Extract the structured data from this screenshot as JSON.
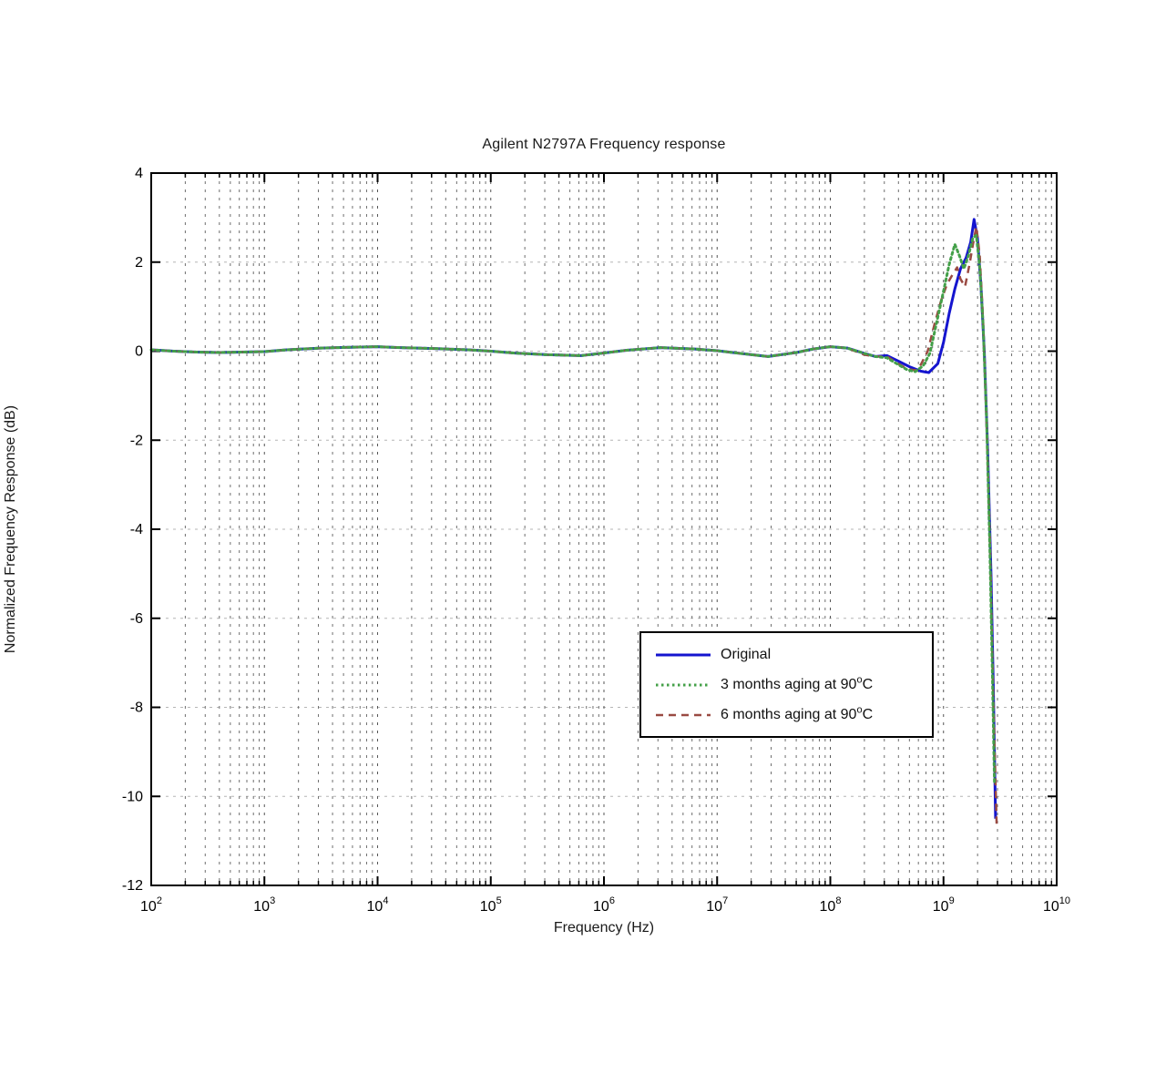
{
  "chart_data": {
    "type": "line",
    "title": "Agilent N2797A Frequency response",
    "xlabel": "Frequency (Hz)",
    "ylabel": "Normalized Frequency Response (dB)",
    "x_scale": "log10",
    "x_range_log10": [
      2,
      10
    ],
    "y_range": [
      -12,
      4
    ],
    "x_tick_exponents": [
      2,
      3,
      4,
      5,
      6,
      7,
      8,
      9,
      10
    ],
    "y_ticks": [
      4,
      2,
      0,
      -2,
      -4,
      -6,
      -8,
      -10,
      -12
    ],
    "grid": {
      "vertical_log_minor": true,
      "horizontal": true,
      "style": "dashed"
    },
    "legend_position": "inside-lower-right",
    "series": [
      {
        "name": "Original",
        "name_sup": "",
        "name_tail": "",
        "color": "#1515cf",
        "line_style": "solid",
        "line_width": 3,
        "points": [
          [
            2.0,
            0.03
          ],
          [
            2.2,
            0.0
          ],
          [
            2.4,
            -0.02
          ],
          [
            2.6,
            -0.03
          ],
          [
            2.8,
            -0.02
          ],
          [
            3.0,
            -0.01
          ],
          [
            3.2,
            0.03
          ],
          [
            3.5,
            0.07
          ],
          [
            3.8,
            0.09
          ],
          [
            4.0,
            0.1
          ],
          [
            4.2,
            0.08
          ],
          [
            4.5,
            0.06
          ],
          [
            4.8,
            0.03
          ],
          [
            5.0,
            0.0
          ],
          [
            5.2,
            -0.04
          ],
          [
            5.5,
            -0.08
          ],
          [
            5.8,
            -0.1
          ],
          [
            6.0,
            -0.04
          ],
          [
            6.2,
            0.02
          ],
          [
            6.5,
            0.08
          ],
          [
            6.8,
            0.05
          ],
          [
            7.0,
            0.01
          ],
          [
            7.2,
            -0.05
          ],
          [
            7.45,
            -0.12
          ],
          [
            7.7,
            -0.03
          ],
          [
            7.85,
            0.05
          ],
          [
            8.0,
            0.1
          ],
          [
            8.15,
            0.07
          ],
          [
            8.3,
            -0.05
          ],
          [
            8.4,
            -0.12
          ],
          [
            8.5,
            -0.1
          ],
          [
            8.6,
            -0.22
          ],
          [
            8.7,
            -0.35
          ],
          [
            8.8,
            -0.45
          ],
          [
            8.87,
            -0.48
          ],
          [
            8.95,
            -0.28
          ],
          [
            9.0,
            0.2
          ],
          [
            9.05,
            0.85
          ],
          [
            9.1,
            1.4
          ],
          [
            9.15,
            1.85
          ],
          [
            9.2,
            2.1
          ],
          [
            9.24,
            2.45
          ],
          [
            9.27,
            2.96
          ],
          [
            9.3,
            2.55
          ],
          [
            9.33,
            1.5
          ],
          [
            9.36,
            0.0
          ],
          [
            9.39,
            -2.2
          ],
          [
            9.42,
            -5.0
          ],
          [
            9.44,
            -7.5
          ],
          [
            9.46,
            -10.5
          ]
        ]
      },
      {
        "name": "3 months aging at 90",
        "name_sup": "o",
        "name_tail": "C",
        "color": "#44a049",
        "line_style": "dotted",
        "line_width": 3,
        "points": [
          [
            2.0,
            0.03
          ],
          [
            2.2,
            0.0
          ],
          [
            2.4,
            -0.02
          ],
          [
            2.6,
            -0.03
          ],
          [
            2.8,
            -0.02
          ],
          [
            3.0,
            -0.01
          ],
          [
            3.2,
            0.03
          ],
          [
            3.5,
            0.07
          ],
          [
            3.8,
            0.09
          ],
          [
            4.0,
            0.1
          ],
          [
            4.2,
            0.08
          ],
          [
            4.5,
            0.06
          ],
          [
            4.8,
            0.03
          ],
          [
            5.0,
            0.0
          ],
          [
            5.2,
            -0.04
          ],
          [
            5.5,
            -0.08
          ],
          [
            5.8,
            -0.1
          ],
          [
            6.0,
            -0.04
          ],
          [
            6.2,
            0.02
          ],
          [
            6.5,
            0.08
          ],
          [
            6.8,
            0.05
          ],
          [
            7.0,
            0.01
          ],
          [
            7.2,
            -0.05
          ],
          [
            7.45,
            -0.12
          ],
          [
            7.7,
            -0.03
          ],
          [
            7.85,
            0.05
          ],
          [
            8.0,
            0.1
          ],
          [
            8.15,
            0.07
          ],
          [
            8.3,
            -0.05
          ],
          [
            8.4,
            -0.12
          ],
          [
            8.5,
            -0.15
          ],
          [
            8.6,
            -0.3
          ],
          [
            8.68,
            -0.42
          ],
          [
            8.75,
            -0.46
          ],
          [
            8.82,
            -0.33
          ],
          [
            8.88,
            -0.05
          ],
          [
            8.94,
            0.65
          ],
          [
            9.0,
            1.35
          ],
          [
            9.05,
            1.95
          ],
          [
            9.1,
            2.4
          ],
          [
            9.14,
            2.15
          ],
          [
            9.18,
            1.85
          ],
          [
            9.22,
            2.15
          ],
          [
            9.26,
            2.55
          ],
          [
            9.29,
            2.6
          ],
          [
            9.32,
            1.9
          ],
          [
            9.35,
            0.6
          ],
          [
            9.38,
            -1.5
          ],
          [
            9.41,
            -4.5
          ],
          [
            9.43,
            -7.0
          ],
          [
            9.45,
            -9.7
          ]
        ]
      },
      {
        "name": "6 months aging at 90",
        "name_sup": "o",
        "name_tail": "C",
        "color": "#9a4a42",
        "line_style": "dashed",
        "line_width": 2.5,
        "points": [
          [
            2.0,
            0.03
          ],
          [
            2.2,
            0.0
          ],
          [
            2.4,
            -0.02
          ],
          [
            2.6,
            -0.03
          ],
          [
            2.8,
            -0.02
          ],
          [
            3.0,
            -0.01
          ],
          [
            3.2,
            0.03
          ],
          [
            3.5,
            0.07
          ],
          [
            3.8,
            0.09
          ],
          [
            4.0,
            0.1
          ],
          [
            4.2,
            0.08
          ],
          [
            4.5,
            0.06
          ],
          [
            4.8,
            0.03
          ],
          [
            5.0,
            0.0
          ],
          [
            5.2,
            -0.04
          ],
          [
            5.5,
            -0.08
          ],
          [
            5.8,
            -0.1
          ],
          [
            6.0,
            -0.04
          ],
          [
            6.2,
            0.02
          ],
          [
            6.5,
            0.08
          ],
          [
            6.8,
            0.05
          ],
          [
            7.0,
            0.01
          ],
          [
            7.2,
            -0.05
          ],
          [
            7.45,
            -0.12
          ],
          [
            7.7,
            -0.03
          ],
          [
            7.85,
            0.05
          ],
          [
            8.0,
            0.1
          ],
          [
            8.15,
            0.07
          ],
          [
            8.3,
            -0.08
          ],
          [
            8.4,
            -0.12
          ],
          [
            8.5,
            -0.12
          ],
          [
            8.6,
            -0.28
          ],
          [
            8.68,
            -0.4
          ],
          [
            8.75,
            -0.43
          ],
          [
            8.8,
            -0.3
          ],
          [
            8.86,
            0.0
          ],
          [
            8.92,
            0.6
          ],
          [
            8.98,
            1.15
          ],
          [
            9.03,
            1.5
          ],
          [
            9.08,
            1.72
          ],
          [
            9.12,
            1.88
          ],
          [
            9.15,
            1.62
          ],
          [
            9.19,
            1.45
          ],
          [
            9.23,
            1.95
          ],
          [
            9.26,
            2.4
          ],
          [
            9.29,
            2.8
          ],
          [
            9.32,
            2.15
          ],
          [
            9.35,
            0.7
          ],
          [
            9.38,
            -1.6
          ],
          [
            9.41,
            -4.2
          ],
          [
            9.44,
            -7.8
          ],
          [
            9.47,
            -10.65
          ]
        ]
      }
    ],
    "colors": {
      "plot_border": "#000000",
      "grid_vertical": "#555555",
      "grid_horizontal": "#b5b5b5",
      "legend_border": "#000000",
      "legend_background": "#ffffff"
    }
  }
}
